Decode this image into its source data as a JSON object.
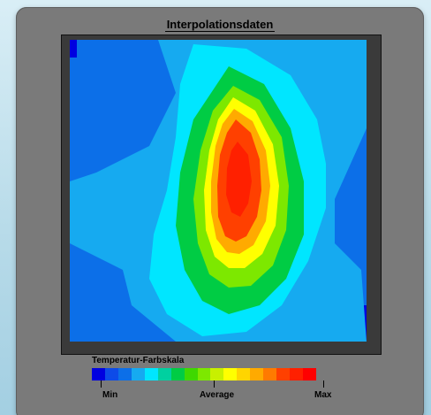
{
  "window": {
    "title": "Interpolationsdaten"
  },
  "heatmap": {
    "description_colors": {
      "min": "#0000e0",
      "low": "#0c6fe8",
      "low_mid": "#16aaf0",
      "mid_low": "#00e6ff",
      "mid": "#00cc44",
      "mid_high": "#7de800",
      "high_low": "#ffff00",
      "high": "#ffaa00",
      "high_max": "#ff4000",
      "max": "#ff0000"
    }
  },
  "legend": {
    "title": "Temperatur-Farbskala",
    "min_label": "Min",
    "average_label": "Average",
    "max_label": "Max",
    "colors": [
      "#0000e0",
      "#0d4be8",
      "#0c6fe8",
      "#16aaf0",
      "#00e6ff",
      "#00d0a0",
      "#00cc44",
      "#3fd800",
      "#7de800",
      "#c8f000",
      "#ffff00",
      "#ffd500",
      "#ffaa00",
      "#ff7a00",
      "#ff4000",
      "#ff2000",
      "#ff0000"
    ]
  }
}
